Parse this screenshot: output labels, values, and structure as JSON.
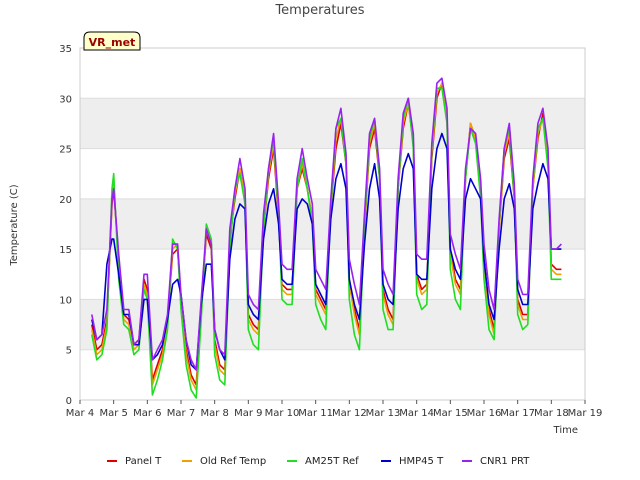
{
  "chart_data": {
    "type": "line",
    "title": "Temperatures",
    "xlabel": "Time",
    "ylabel": "Temperature (C)",
    "xlim": [
      4,
      19
    ],
    "ylim": [
      0,
      35
    ],
    "yticks": [
      0,
      5,
      10,
      15,
      20,
      25,
      30,
      35
    ],
    "xtick_labels": [
      "Mar 4",
      "Mar 5",
      "Mar 6",
      "Mar 7",
      "Mar 8",
      "Mar 9",
      "Mar 10",
      "Mar 11",
      "Mar 12",
      "Mar 13",
      "Mar 14",
      "Mar 15",
      "Mar 16",
      "Mar 17",
      "Mar 18",
      "Mar 19"
    ],
    "grid": "horizontal bands",
    "legend_position": "bottom-center",
    "annotation": "VR_met",
    "series": [
      {
        "name": "Panel T",
        "color": "#dd0000",
        "x": [
          4.35,
          4.5,
          4.65,
          4.8,
          4.95,
          5.0,
          5.15,
          5.3,
          5.45,
          5.6,
          5.75,
          5.9,
          6.0,
          6.15,
          6.3,
          6.45,
          6.6,
          6.75,
          6.9,
          7.0,
          7.15,
          7.3,
          7.45,
          7.6,
          7.75,
          7.9,
          8.0,
          8.15,
          8.3,
          8.45,
          8.6,
          8.75,
          8.9,
          9.0,
          9.15,
          9.3,
          9.45,
          9.6,
          9.75,
          9.9,
          10.0,
          10.15,
          10.3,
          10.45,
          10.6,
          10.75,
          10.9,
          11.0,
          11.15,
          11.3,
          11.45,
          11.6,
          11.75,
          11.9,
          12.0,
          12.15,
          12.3,
          12.45,
          12.6,
          12.75,
          12.9,
          13.0,
          13.15,
          13.3,
          13.45,
          13.6,
          13.75,
          13.9,
          14.0,
          14.15,
          14.3,
          14.45,
          14.6,
          14.75,
          14.9,
          15.0,
          15.15,
          15.3,
          15.45,
          15.6,
          15.75,
          15.9,
          16.0,
          16.15,
          16.3,
          16.45,
          16.6,
          16.75,
          16.9,
          17.0,
          17.15,
          17.3,
          17.45,
          17.6,
          17.75,
          17.9,
          18.0,
          18.15,
          18.3
        ],
        "y": [
          7.5,
          5.0,
          5.5,
          8.0,
          19.5,
          21.0,
          14.0,
          8.5,
          8.0,
          5.5,
          6.0,
          12.0,
          11.0,
          2.0,
          3.5,
          5.0,
          8.0,
          14.5,
          15.0,
          10.0,
          5.0,
          2.5,
          1.5,
          9.0,
          16.5,
          15.0,
          6.0,
          3.5,
          3.0,
          16.0,
          20.0,
          23.0,
          20.0,
          8.5,
          7.5,
          7.0,
          17.0,
          22.0,
          25.0,
          18.0,
          11.5,
          11.0,
          11.0,
          21.0,
          23.0,
          21.0,
          18.0,
          11.0,
          10.0,
          9.0,
          19.0,
          25.0,
          27.5,
          23.5,
          12.0,
          9.0,
          7.0,
          17.0,
          25.0,
          27.0,
          22.0,
          11.0,
          9.0,
          8.0,
          21.0,
          27.0,
          29.5,
          25.5,
          12.5,
          11.0,
          11.5,
          24.0,
          30.0,
          31.5,
          28.0,
          15.0,
          12.0,
          11.0,
          22.0,
          27.5,
          26.0,
          21.0,
          14.0,
          9.0,
          7.0,
          17.0,
          24.0,
          26.0,
          20.0,
          10.0,
          8.5,
          8.5,
          21.0,
          26.0,
          28.5,
          24.0,
          13.5,
          13.0,
          13.0
        ]
      },
      {
        "name": "Old Ref Temp",
        "color": "#f0a000",
        "x": [
          4.35,
          4.5,
          4.65,
          4.8,
          4.95,
          5.0,
          5.15,
          5.3,
          5.45,
          5.6,
          5.75,
          5.9,
          6.0,
          6.15,
          6.3,
          6.45,
          6.6,
          6.75,
          6.9,
          7.0,
          7.15,
          7.3,
          7.45,
          7.6,
          7.75,
          7.9,
          8.0,
          8.15,
          8.3,
          8.45,
          8.6,
          8.75,
          8.9,
          9.0,
          9.15,
          9.3,
          9.45,
          9.6,
          9.75,
          9.9,
          10.0,
          10.15,
          10.3,
          10.45,
          10.6,
          10.75,
          10.9,
          11.0,
          11.15,
          11.3,
          11.45,
          11.6,
          11.75,
          11.9,
          12.0,
          12.15,
          12.3,
          12.45,
          12.6,
          12.75,
          12.9,
          13.0,
          13.15,
          13.3,
          13.45,
          13.6,
          13.75,
          13.9,
          14.0,
          14.15,
          14.3,
          14.45,
          14.6,
          14.75,
          14.9,
          15.0,
          15.15,
          15.3,
          15.45,
          15.6,
          15.75,
          15.9,
          16.0,
          16.15,
          16.3,
          16.45,
          16.6,
          16.75,
          16.9,
          17.0,
          17.15,
          17.3,
          17.45,
          17.6,
          17.75,
          17.9,
          18.0,
          18.15,
          18.3
        ],
        "y": [
          7.0,
          4.5,
          5.0,
          7.5,
          20.0,
          21.5,
          13.5,
          8.0,
          7.5,
          5.0,
          5.5,
          11.5,
          10.5,
          1.5,
          3.0,
          4.5,
          7.5,
          15.0,
          15.5,
          9.5,
          4.5,
          2.0,
          1.0,
          8.5,
          17.0,
          15.5,
          5.5,
          3.0,
          2.5,
          15.5,
          20.5,
          23.0,
          20.0,
          8.0,
          7.0,
          6.5,
          17.0,
          22.5,
          25.5,
          18.5,
          11.0,
          10.5,
          10.5,
          21.0,
          23.5,
          21.0,
          18.0,
          10.5,
          9.5,
          8.5,
          19.0,
          26.0,
          28.0,
          24.0,
          11.5,
          8.5,
          6.5,
          17.0,
          25.5,
          27.5,
          22.5,
          10.5,
          8.5,
          7.5,
          21.0,
          27.5,
          29.5,
          25.5,
          12.0,
          10.5,
          11.0,
          24.5,
          30.5,
          31.5,
          28.0,
          14.5,
          11.5,
          10.5,
          22.0,
          27.5,
          26.0,
          21.0,
          13.5,
          8.5,
          6.5,
          17.0,
          24.5,
          26.5,
          20.5,
          9.5,
          8.0,
          8.0,
          21.0,
          26.5,
          28.0,
          24.0,
          13.0,
          12.5,
          12.5
        ]
      },
      {
        "name": "AM25T Ref",
        "color": "#22dd22",
        "x": [
          4.35,
          4.5,
          4.65,
          4.8,
          4.95,
          5.0,
          5.15,
          5.3,
          5.45,
          5.6,
          5.75,
          5.9,
          6.0,
          6.15,
          6.3,
          6.45,
          6.6,
          6.75,
          6.9,
          7.0,
          7.15,
          7.3,
          7.45,
          7.6,
          7.75,
          7.9,
          8.0,
          8.15,
          8.3,
          8.45,
          8.6,
          8.75,
          8.9,
          9.0,
          9.15,
          9.3,
          9.45,
          9.6,
          9.75,
          9.9,
          10.0,
          10.15,
          10.3,
          10.45,
          10.6,
          10.75,
          10.9,
          11.0,
          11.15,
          11.3,
          11.45,
          11.6,
          11.75,
          11.9,
          12.0,
          12.15,
          12.3,
          12.45,
          12.6,
          12.75,
          12.9,
          13.0,
          13.15,
          13.3,
          13.45,
          13.6,
          13.75,
          13.9,
          14.0,
          14.15,
          14.3,
          14.45,
          14.6,
          14.75,
          14.9,
          15.0,
          15.15,
          15.3,
          15.45,
          15.6,
          15.75,
          15.9,
          16.0,
          16.15,
          16.3,
          16.45,
          16.6,
          16.75,
          16.9,
          17.0,
          17.15,
          17.3,
          17.45,
          17.6,
          17.75,
          17.9,
          18.0,
          18.15,
          18.3
        ],
        "y": [
          6.5,
          4.0,
          4.5,
          7.0,
          21.0,
          22.5,
          12.0,
          7.5,
          7.0,
          4.5,
          5.0,
          11.0,
          10.0,
          0.5,
          2.0,
          4.0,
          7.0,
          16.0,
          15.0,
          9.0,
          3.5,
          1.0,
          0.2,
          8.0,
          17.5,
          16.0,
          4.5,
          2.0,
          1.5,
          15.0,
          21.0,
          22.5,
          19.5,
          7.0,
          5.5,
          5.0,
          17.0,
          23.0,
          26.0,
          18.5,
          10.0,
          9.5,
          9.5,
          21.0,
          24.0,
          21.0,
          17.5,
          9.5,
          8.0,
          7.0,
          19.0,
          27.0,
          28.0,
          23.5,
          10.0,
          6.5,
          5.0,
          17.5,
          26.0,
          28.0,
          22.0,
          9.0,
          7.0,
          7.0,
          21.0,
          28.0,
          30.0,
          25.0,
          10.5,
          9.0,
          9.5,
          25.0,
          31.0,
          31.0,
          27.5,
          13.0,
          10.0,
          9.0,
          22.0,
          27.0,
          25.5,
          20.0,
          12.0,
          7.0,
          6.0,
          17.5,
          25.0,
          27.0,
          20.0,
          8.5,
          7.0,
          7.5,
          21.5,
          27.0,
          28.0,
          23.0,
          12.0,
          12.0,
          12.0
        ]
      },
      {
        "name": "HMP45 T",
        "color": "#0000cc",
        "x": [
          4.35,
          4.5,
          4.65,
          4.8,
          4.95,
          5.0,
          5.15,
          5.3,
          5.45,
          5.6,
          5.75,
          5.9,
          6.0,
          6.15,
          6.3,
          6.45,
          6.6,
          6.75,
          6.9,
          7.0,
          7.15,
          7.3,
          7.45,
          7.6,
          7.75,
          7.9,
          8.0,
          8.15,
          8.3,
          8.45,
          8.6,
          8.75,
          8.9,
          9.0,
          9.15,
          9.3,
          9.45,
          9.6,
          9.75,
          9.9,
          10.0,
          10.15,
          10.3,
          10.45,
          10.6,
          10.75,
          10.9,
          11.0,
          11.15,
          11.3,
          11.45,
          11.6,
          11.75,
          11.9,
          12.0,
          12.15,
          12.3,
          12.45,
          12.6,
          12.75,
          12.9,
          13.0,
          13.15,
          13.3,
          13.45,
          13.6,
          13.75,
          13.9,
          14.0,
          14.15,
          14.3,
          14.45,
          14.6,
          14.75,
          14.9,
          15.0,
          15.15,
          15.3,
          15.45,
          15.6,
          15.75,
          15.9,
          16.0,
          16.15,
          16.3,
          16.45,
          16.6,
          16.75,
          16.9,
          17.0,
          17.15,
          17.3,
          17.45,
          17.6,
          17.75,
          17.9,
          18.0,
          18.15,
          18.3
        ],
        "y": [
          8.0,
          6.0,
          6.5,
          13.5,
          16.0,
          16.0,
          12.5,
          8.5,
          8.5,
          5.5,
          5.5,
          10.0,
          10.0,
          4.0,
          4.5,
          5.5,
          8.0,
          11.5,
          12.0,
          10.5,
          6.0,
          3.5,
          3.0,
          9.5,
          13.5,
          13.5,
          7.0,
          5.0,
          4.0,
          14.0,
          18.0,
          19.5,
          19.0,
          9.5,
          8.5,
          8.0,
          16.0,
          19.5,
          21.0,
          17.5,
          12.0,
          11.5,
          11.5,
          19.0,
          20.0,
          19.5,
          17.5,
          11.5,
          10.5,
          9.5,
          18.0,
          22.0,
          23.5,
          21.0,
          12.0,
          9.5,
          8.0,
          15.5,
          21.0,
          23.5,
          20.0,
          11.5,
          10.0,
          9.5,
          19.0,
          23.0,
          24.5,
          23.0,
          12.5,
          12.0,
          12.0,
          21.0,
          25.0,
          26.5,
          25.0,
          15.0,
          13.0,
          12.0,
          20.0,
          22.0,
          21.0,
          20.0,
          14.0,
          9.5,
          8.0,
          15.0,
          20.0,
          21.5,
          19.0,
          11.0,
          9.5,
          9.5,
          19.0,
          21.5,
          23.5,
          22.0,
          15.0,
          15.0,
          15.0
        ]
      },
      {
        "name": "CNR1 PRT",
        "color": "#9922ee",
        "x": [
          4.35,
          4.5,
          4.65,
          4.8,
          4.95,
          5.0,
          5.15,
          5.3,
          5.45,
          5.6,
          5.75,
          5.9,
          6.0,
          6.15,
          6.3,
          6.45,
          6.6,
          6.75,
          6.9,
          7.0,
          7.15,
          7.3,
          7.45,
          7.6,
          7.75,
          7.9,
          8.0,
          8.15,
          8.3,
          8.45,
          8.6,
          8.75,
          8.9,
          9.0,
          9.15,
          9.3,
          9.45,
          9.6,
          9.75,
          9.9,
          10.0,
          10.15,
          10.3,
          10.45,
          10.6,
          10.75,
          10.9,
          11.0,
          11.15,
          11.3,
          11.45,
          11.6,
          11.75,
          11.9,
          12.0,
          12.15,
          12.3,
          12.45,
          12.6,
          12.75,
          12.9,
          13.0,
          13.15,
          13.3,
          13.45,
          13.6,
          13.75,
          13.9,
          14.0,
          14.15,
          14.3,
          14.45,
          14.6,
          14.75,
          14.9,
          15.0,
          15.15,
          15.3,
          15.45,
          15.6,
          15.75,
          15.9,
          16.0,
          16.15,
          16.3,
          16.45,
          16.6,
          16.75,
          16.9,
          17.0,
          17.15,
          17.3,
          17.45,
          17.6,
          17.75,
          17.9,
          18.0,
          18.15,
          18.3
        ],
        "y": [
          8.5,
          6.0,
          6.5,
          9.0,
          20.0,
          21.0,
          14.5,
          9.0,
          9.0,
          5.5,
          6.0,
          12.5,
          12.5,
          4.0,
          5.0,
          6.0,
          8.5,
          15.5,
          15.5,
          10.5,
          6.0,
          4.0,
          3.0,
          10.0,
          17.0,
          15.5,
          7.0,
          5.0,
          4.5,
          17.0,
          21.0,
          24.0,
          21.0,
          10.5,
          9.5,
          9.0,
          18.5,
          23.0,
          26.5,
          19.5,
          13.5,
          13.0,
          13.0,
          22.0,
          25.0,
          22.0,
          19.5,
          13.0,
          12.0,
          11.0,
          20.0,
          27.0,
          29.0,
          24.5,
          14.0,
          11.5,
          9.5,
          18.5,
          26.5,
          28.0,
          23.0,
          13.0,
          11.5,
          10.5,
          22.0,
          28.5,
          30.0,
          26.5,
          14.5,
          14.0,
          14.0,
          25.5,
          31.5,
          32.0,
          29.0,
          16.5,
          14.5,
          13.0,
          23.0,
          27.0,
          26.5,
          22.0,
          15.5,
          11.0,
          9.0,
          18.0,
          25.0,
          27.5,
          21.5,
          12.0,
          10.5,
          10.5,
          22.0,
          27.5,
          29.0,
          25.0,
          15.0,
          15.0,
          15.5
        ]
      }
    ]
  }
}
